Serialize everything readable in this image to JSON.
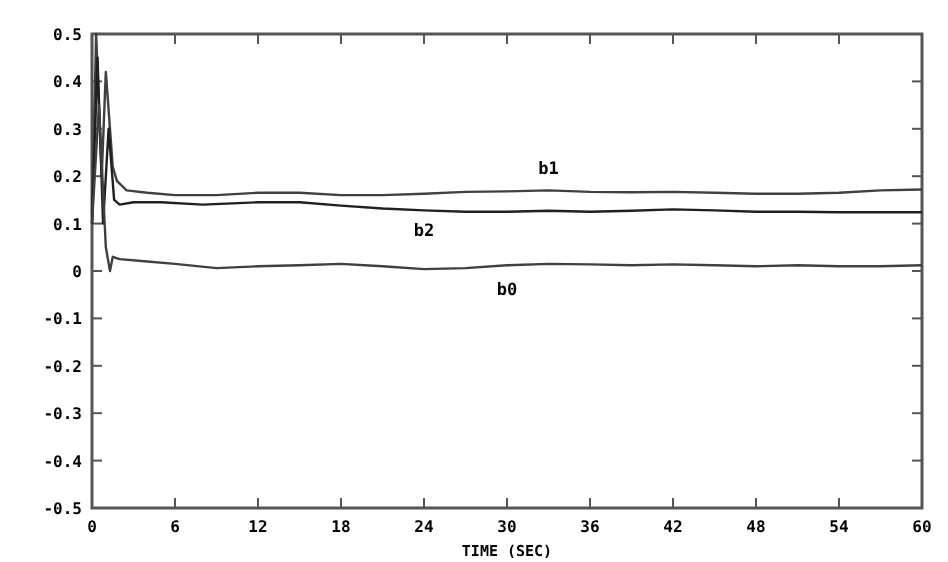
{
  "chart_data": {
    "type": "line",
    "xlabel": "TIME (SEC)",
    "xlim": [
      0,
      60
    ],
    "ylim": [
      -0.5,
      0.5
    ],
    "xticks": [
      0,
      6,
      12,
      18,
      24,
      30,
      36,
      42,
      48,
      54,
      60
    ],
    "yticks": [
      {
        "value": -0.5,
        "label": "-0.5"
      },
      {
        "value": -0.4,
        "label": "-0.4"
      },
      {
        "value": -0.3,
        "label": "-0.3"
      },
      {
        "value": -0.2,
        "label": "-0.2"
      },
      {
        "value": -0.1,
        "label": "-0.1"
      },
      {
        "value": 0,
        "label": "0"
      },
      {
        "value": 0.1,
        "label": "0.1"
      },
      {
        "value": 0.2,
        "label": "0.2"
      },
      {
        "value": 0.3,
        "label": "0.3"
      },
      {
        "value": 0.4,
        "label": "0.4"
      },
      {
        "value": 0.5,
        "label": "0.5"
      }
    ],
    "grid": false,
    "marker": "none",
    "line_style": "solid",
    "series": [
      {
        "name": "b1",
        "color": "#404040",
        "x": [
          0,
          0.3,
          0.7,
          1.0,
          1.5,
          1.8,
          2.5,
          4,
          6,
          9,
          12,
          15,
          18,
          21,
          24,
          27,
          30,
          33,
          36,
          39,
          42,
          45,
          48,
          51,
          54,
          57,
          60
        ],
        "values": [
          0.12,
          0.5,
          0.2,
          0.42,
          0.22,
          0.19,
          0.17,
          0.165,
          0.16,
          0.16,
          0.165,
          0.165,
          0.16,
          0.16,
          0.163,
          0.167,
          0.168,
          0.17,
          0.167,
          0.166,
          0.167,
          0.165,
          0.163,
          0.163,
          0.165,
          0.17,
          0.172
        ]
      },
      {
        "name": "b2",
        "color": "#202020",
        "x": [
          0,
          0.4,
          0.8,
          1.2,
          1.6,
          2,
          3,
          5,
          8,
          12,
          15,
          18,
          21,
          24,
          27,
          30,
          33,
          36,
          39,
          42,
          45,
          48,
          51,
          54,
          57,
          60
        ],
        "values": [
          0.1,
          0.45,
          0.1,
          0.3,
          0.15,
          0.14,
          0.145,
          0.145,
          0.14,
          0.145,
          0.145,
          0.138,
          0.132,
          0.128,
          0.125,
          0.125,
          0.127,
          0.125,
          0.127,
          0.13,
          0.128,
          0.125,
          0.125,
          0.124,
          0.124,
          0.124
        ]
      },
      {
        "name": "b0",
        "color": "#404040",
        "x": [
          0,
          0.5,
          1.0,
          1.3,
          1.5,
          2,
          4,
          6,
          9,
          12,
          15,
          18,
          21,
          24,
          27,
          30,
          33,
          36,
          39,
          42,
          45,
          48,
          51,
          54,
          57,
          60
        ],
        "values": [
          0.1,
          0.35,
          0.05,
          0,
          0.03,
          0.025,
          0.02,
          0.015,
          0.006,
          0.01,
          0.012,
          0.015,
          0.01,
          0.004,
          0.006,
          0.012,
          0.015,
          0.014,
          0.012,
          0.014,
          0.012,
          0.01,
          0.012,
          0.01,
          0.01,
          0.012
        ]
      }
    ]
  }
}
